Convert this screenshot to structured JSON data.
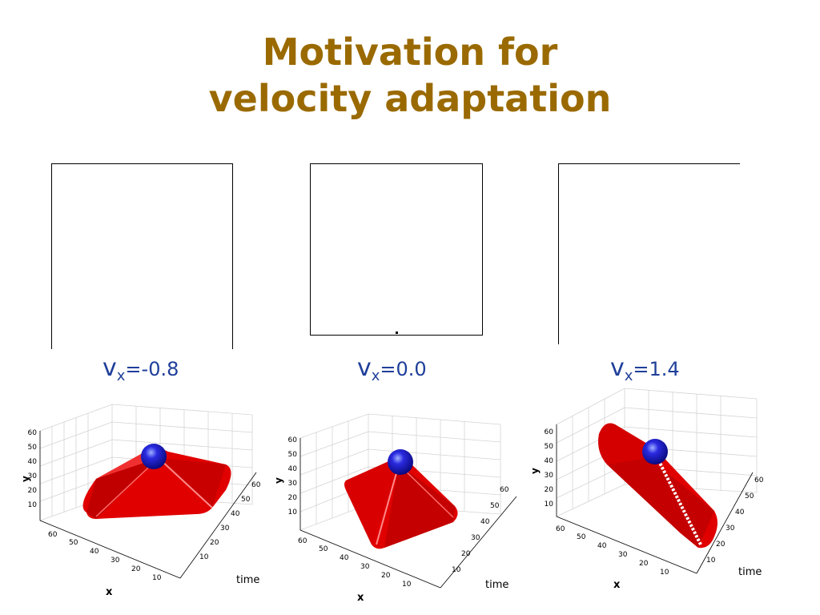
{
  "slide": {
    "title_line1": "Motivation for",
    "title_line2": "velocity adaptation"
  },
  "panels": [
    {
      "v_symbol": "v",
      "v_sub": "x",
      "v_value": "=-0.8"
    },
    {
      "v_symbol": "v",
      "v_sub": "x",
      "v_value": "=0.0"
    },
    {
      "v_symbol": "v",
      "v_sub": "x",
      "v_value": "=1.4"
    }
  ],
  "axes": {
    "y_label": "y",
    "x_label": "x",
    "t_label": "time",
    "y_ticks": [
      "60",
      "50",
      "40",
      "30",
      "20",
      "10"
    ],
    "x_ticks": [
      "60",
      "50",
      "40",
      "30",
      "20",
      "10"
    ],
    "t_ticks": [
      "60",
      "50",
      "40",
      "30",
      "20",
      "10"
    ]
  },
  "colors": {
    "title": "#9a6a00",
    "label": "#1f3f9a",
    "surface": "#e00000",
    "sphere": "#1a1ad0"
  }
}
